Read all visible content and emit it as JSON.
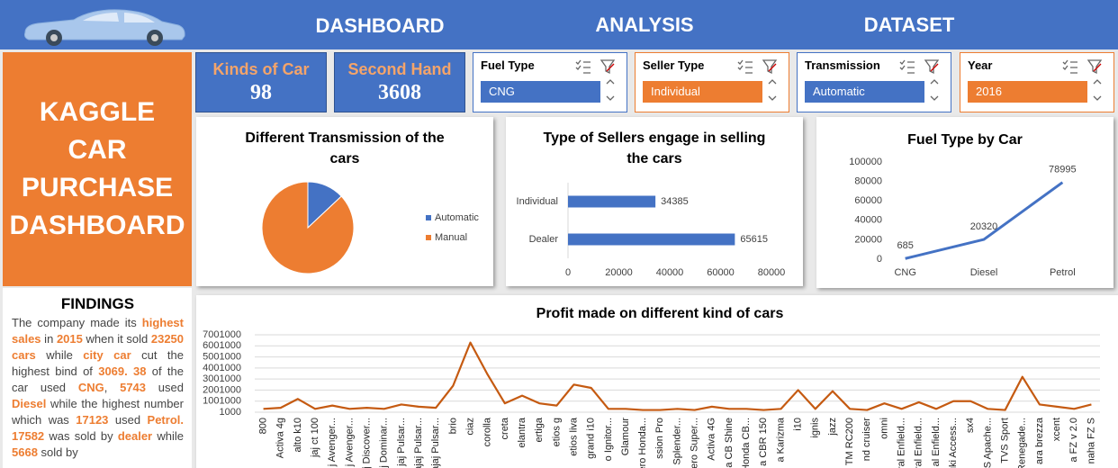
{
  "nav": [
    "DASHBOARD",
    "ANALYSIS",
    "DATASET"
  ],
  "title": "KAGGLE CAR PURCHASE DASHBOARD",
  "kpis": [
    {
      "label": "Kinds of Car",
      "value": 98
    },
    {
      "label": "Second Hand",
      "value": 3608
    }
  ],
  "slicers": [
    {
      "label": "Fuel Type",
      "selected": "CNG",
      "color": "#4472c4"
    },
    {
      "label": "Seller Type",
      "selected": "Individual",
      "color": "#ed7d31"
    },
    {
      "label": "Transmission",
      "selected": "Automatic",
      "color": "#4472c4"
    },
    {
      "label": "Year",
      "selected": "2016",
      "color": "#ed7d31"
    }
  ],
  "findings": {
    "title": "FINDINGS",
    "segments": [
      {
        "text": "The company made its ",
        "highlight": false
      },
      {
        "text": "highest sales",
        "highlight": true
      },
      {
        "text": " in ",
        "highlight": false
      },
      {
        "text": "2015",
        "highlight": true
      },
      {
        "text": " when it sold ",
        "highlight": false
      },
      {
        "text": "23250 cars",
        "highlight": true
      },
      {
        "text": " while ",
        "highlight": false
      },
      {
        "text": "city car",
        "highlight": true
      },
      {
        "text": " cut the highest bind of ",
        "highlight": false
      },
      {
        "text": "3069. 38",
        "highlight": true
      },
      {
        "text": " of the car used ",
        "highlight": false
      },
      {
        "text": "CNG",
        "highlight": true
      },
      {
        "text": ", ",
        "highlight": false
      },
      {
        "text": "5743",
        "highlight": true
      },
      {
        "text": " used ",
        "highlight": false
      },
      {
        "text": "Diesel",
        "highlight": true
      },
      {
        "text": " while the highest number which was ",
        "highlight": false
      },
      {
        "text": "17123",
        "highlight": true
      },
      {
        "text": " used ",
        "highlight": false
      },
      {
        "text": "Petrol.",
        "highlight": true
      },
      {
        "text": "  ",
        "highlight": false
      },
      {
        "text": "17582",
        "highlight": true
      },
      {
        "text": " was sold by ",
        "highlight": false
      },
      {
        "text": "dealer",
        "highlight": true
      },
      {
        "text": " while ",
        "highlight": false
      },
      {
        "text": "5668",
        "highlight": true
      },
      {
        "text": " sold by",
        "highlight": false
      }
    ]
  },
  "chart_data": [
    {
      "type": "pie",
      "title": "Different Transmission of the cars",
      "categories": [
        "Automatic",
        "Manual"
      ],
      "values": [
        13,
        87
      ],
      "colors": [
        "#4472c4",
        "#ed7d31"
      ],
      "legend": "right"
    },
    {
      "type": "bar",
      "orientation": "horizontal",
      "title": "Type of Sellers engage in selling the cars",
      "categories": [
        "Individual",
        "Dealer"
      ],
      "values": [
        34385,
        65615
      ],
      "color": "#4472c4",
      "xlim": [
        0,
        80000
      ],
      "xticks": [
        0,
        20000,
        40000,
        60000,
        80000
      ],
      "data_labels": true
    },
    {
      "type": "line",
      "title": "Fuel Type by Car",
      "categories": [
        "CNG",
        "Diesel",
        "Petrol"
      ],
      "values": [
        685,
        20320,
        78995
      ],
      "color": "#4472c4",
      "ylim": [
        0,
        100000
      ],
      "yticks": [
        0,
        20000,
        40000,
        60000,
        80000,
        100000
      ],
      "data_labels": true,
      "grid": false
    },
    {
      "type": "line",
      "title": "Profit made on different kind of cars",
      "categories": [
        "800",
        "Activa 4g",
        "alto k10",
        "jaj ct 100",
        "j Avenger...",
        "j Avenger...",
        "j Discover...",
        "j Dominar...",
        "jaj Pulsar...",
        "ajaj Pulsar...",
        "ajaj Pulsar...",
        "brio",
        "ciaz",
        "corolla",
        "creta",
        "elantra",
        "ertiga",
        "etios g",
        "etios liva",
        "grand i10",
        "o Ignitor...",
        "Glamour",
        "ero Honda...",
        "ssion Pro",
        "o Splender...",
        "ero Super...",
        "Activa 4G",
        "a CB Shine",
        "Honda CB...",
        "a CBR 150",
        "a Karizma",
        "i10",
        "ignis",
        "jazz",
        "TM RC200",
        "nd cruiser",
        "omni",
        "ral Enfield...",
        "ral Enfield...",
        "al Enfield...",
        "uki Access...",
        "sx4",
        "VS Apache...",
        "TVS Sport",
        "Renegade...",
        "ara brezza",
        "xcent",
        "a FZ  v 2.0",
        "naha FZ S"
      ],
      "values": [
        300000,
        400000,
        1200000,
        300000,
        600000,
        300000,
        400000,
        300000,
        700000,
        500000,
        400000,
        2400000,
        6300000,
        3400000,
        800000,
        1500000,
        800000,
        600000,
        2500000,
        2200000,
        300000,
        300000,
        200000,
        200000,
        300000,
        200000,
        500000,
        300000,
        300000,
        200000,
        300000,
        2000000,
        300000,
        1900000,
        300000,
        200000,
        800000,
        300000,
        900000,
        300000,
        1000000,
        1000000,
        300000,
        200000,
        3200000,
        700000,
        500000,
        300000,
        700000
      ],
      "color": "#c55a11",
      "ylim": [
        1000,
        7001000
      ],
      "yticks": [
        1000,
        1001000,
        2001000,
        3001000,
        4001000,
        5001000,
        6001000,
        7001000
      ],
      "grid": true,
      "data_labels": false,
      "rotate_labels": true
    }
  ]
}
